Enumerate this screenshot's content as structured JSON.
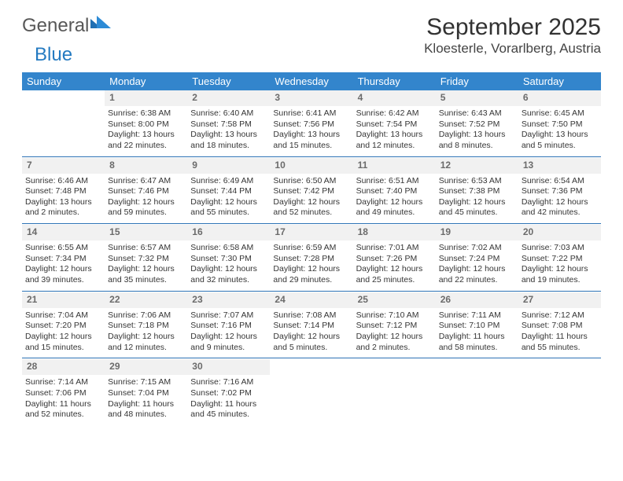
{
  "brand": {
    "part1": "General",
    "part2": "Blue"
  },
  "title": "September 2025",
  "location": "Kloesterle, Vorarlberg, Austria",
  "colors": {
    "header_bg": "#3385cc",
    "rule": "#2d72b5",
    "daynum_bg": "#f1f1f1",
    "daynum_fg": "#6b6b6b",
    "brand_blue": "#247ac1",
    "brand_gray": "#585858"
  },
  "weekdays": [
    "Sunday",
    "Monday",
    "Tuesday",
    "Wednesday",
    "Thursday",
    "Friday",
    "Saturday"
  ],
  "weeks": [
    {
      "nums": [
        "",
        "1",
        "2",
        "3",
        "4",
        "5",
        "6"
      ],
      "cells": [
        {
          "sunrise": "",
          "sunset": "",
          "daylight": ""
        },
        {
          "sunrise": "Sunrise: 6:38 AM",
          "sunset": "Sunset: 8:00 PM",
          "daylight": "Daylight: 13 hours and 22 minutes."
        },
        {
          "sunrise": "Sunrise: 6:40 AM",
          "sunset": "Sunset: 7:58 PM",
          "daylight": "Daylight: 13 hours and 18 minutes."
        },
        {
          "sunrise": "Sunrise: 6:41 AM",
          "sunset": "Sunset: 7:56 PM",
          "daylight": "Daylight: 13 hours and 15 minutes."
        },
        {
          "sunrise": "Sunrise: 6:42 AM",
          "sunset": "Sunset: 7:54 PM",
          "daylight": "Daylight: 13 hours and 12 minutes."
        },
        {
          "sunrise": "Sunrise: 6:43 AM",
          "sunset": "Sunset: 7:52 PM",
          "daylight": "Daylight: 13 hours and 8 minutes."
        },
        {
          "sunrise": "Sunrise: 6:45 AM",
          "sunset": "Sunset: 7:50 PM",
          "daylight": "Daylight: 13 hours and 5 minutes."
        }
      ]
    },
    {
      "nums": [
        "7",
        "8",
        "9",
        "10",
        "11",
        "12",
        "13"
      ],
      "cells": [
        {
          "sunrise": "Sunrise: 6:46 AM",
          "sunset": "Sunset: 7:48 PM",
          "daylight": "Daylight: 13 hours and 2 minutes."
        },
        {
          "sunrise": "Sunrise: 6:47 AM",
          "sunset": "Sunset: 7:46 PM",
          "daylight": "Daylight: 12 hours and 59 minutes."
        },
        {
          "sunrise": "Sunrise: 6:49 AM",
          "sunset": "Sunset: 7:44 PM",
          "daylight": "Daylight: 12 hours and 55 minutes."
        },
        {
          "sunrise": "Sunrise: 6:50 AM",
          "sunset": "Sunset: 7:42 PM",
          "daylight": "Daylight: 12 hours and 52 minutes."
        },
        {
          "sunrise": "Sunrise: 6:51 AM",
          "sunset": "Sunset: 7:40 PM",
          "daylight": "Daylight: 12 hours and 49 minutes."
        },
        {
          "sunrise": "Sunrise: 6:53 AM",
          "sunset": "Sunset: 7:38 PM",
          "daylight": "Daylight: 12 hours and 45 minutes."
        },
        {
          "sunrise": "Sunrise: 6:54 AM",
          "sunset": "Sunset: 7:36 PM",
          "daylight": "Daylight: 12 hours and 42 minutes."
        }
      ]
    },
    {
      "nums": [
        "14",
        "15",
        "16",
        "17",
        "18",
        "19",
        "20"
      ],
      "cells": [
        {
          "sunrise": "Sunrise: 6:55 AM",
          "sunset": "Sunset: 7:34 PM",
          "daylight": "Daylight: 12 hours and 39 minutes."
        },
        {
          "sunrise": "Sunrise: 6:57 AM",
          "sunset": "Sunset: 7:32 PM",
          "daylight": "Daylight: 12 hours and 35 minutes."
        },
        {
          "sunrise": "Sunrise: 6:58 AM",
          "sunset": "Sunset: 7:30 PM",
          "daylight": "Daylight: 12 hours and 32 minutes."
        },
        {
          "sunrise": "Sunrise: 6:59 AM",
          "sunset": "Sunset: 7:28 PM",
          "daylight": "Daylight: 12 hours and 29 minutes."
        },
        {
          "sunrise": "Sunrise: 7:01 AM",
          "sunset": "Sunset: 7:26 PM",
          "daylight": "Daylight: 12 hours and 25 minutes."
        },
        {
          "sunrise": "Sunrise: 7:02 AM",
          "sunset": "Sunset: 7:24 PM",
          "daylight": "Daylight: 12 hours and 22 minutes."
        },
        {
          "sunrise": "Sunrise: 7:03 AM",
          "sunset": "Sunset: 7:22 PM",
          "daylight": "Daylight: 12 hours and 19 minutes."
        }
      ]
    },
    {
      "nums": [
        "21",
        "22",
        "23",
        "24",
        "25",
        "26",
        "27"
      ],
      "cells": [
        {
          "sunrise": "Sunrise: 7:04 AM",
          "sunset": "Sunset: 7:20 PM",
          "daylight": "Daylight: 12 hours and 15 minutes."
        },
        {
          "sunrise": "Sunrise: 7:06 AM",
          "sunset": "Sunset: 7:18 PM",
          "daylight": "Daylight: 12 hours and 12 minutes."
        },
        {
          "sunrise": "Sunrise: 7:07 AM",
          "sunset": "Sunset: 7:16 PM",
          "daylight": "Daylight: 12 hours and 9 minutes."
        },
        {
          "sunrise": "Sunrise: 7:08 AM",
          "sunset": "Sunset: 7:14 PM",
          "daylight": "Daylight: 12 hours and 5 minutes."
        },
        {
          "sunrise": "Sunrise: 7:10 AM",
          "sunset": "Sunset: 7:12 PM",
          "daylight": "Daylight: 12 hours and 2 minutes."
        },
        {
          "sunrise": "Sunrise: 7:11 AM",
          "sunset": "Sunset: 7:10 PM",
          "daylight": "Daylight: 11 hours and 58 minutes."
        },
        {
          "sunrise": "Sunrise: 7:12 AM",
          "sunset": "Sunset: 7:08 PM",
          "daylight": "Daylight: 11 hours and 55 minutes."
        }
      ]
    },
    {
      "nums": [
        "28",
        "29",
        "30",
        "",
        "",
        "",
        ""
      ],
      "cells": [
        {
          "sunrise": "Sunrise: 7:14 AM",
          "sunset": "Sunset: 7:06 PM",
          "daylight": "Daylight: 11 hours and 52 minutes."
        },
        {
          "sunrise": "Sunrise: 7:15 AM",
          "sunset": "Sunset: 7:04 PM",
          "daylight": "Daylight: 11 hours and 48 minutes."
        },
        {
          "sunrise": "Sunrise: 7:16 AM",
          "sunset": "Sunset: 7:02 PM",
          "daylight": "Daylight: 11 hours and 45 minutes."
        },
        {
          "sunrise": "",
          "sunset": "",
          "daylight": ""
        },
        {
          "sunrise": "",
          "sunset": "",
          "daylight": ""
        },
        {
          "sunrise": "",
          "sunset": "",
          "daylight": ""
        },
        {
          "sunrise": "",
          "sunset": "",
          "daylight": ""
        }
      ]
    }
  ]
}
